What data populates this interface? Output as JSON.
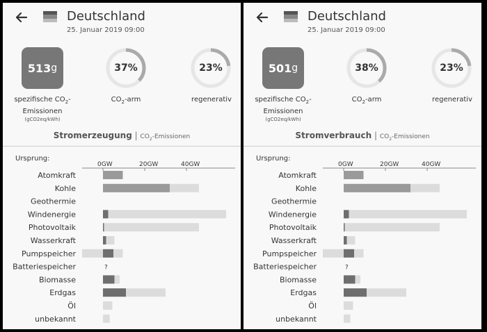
{
  "colors": {
    "background": "#f8f8f8",
    "co2_box": "#777777",
    "ring_track": "#e6e6e6",
    "ring_fill": "#aaaaaa",
    "bar_light": "#dcdcdc",
    "bar_mid": "#9a9a9a",
    "bar_dark": "#6e6e6e"
  },
  "icons": {
    "back": "arrow-left-icon",
    "flag": "germany-flag-icon"
  },
  "panels": [
    {
      "country": "Deutschland",
      "date": "25. Januar 2019 09:00",
      "co2_value": "513",
      "co2_unit": "g",
      "co2_label_pre": "spezifische CO",
      "co2_label_sub": "2",
      "co2_label_post": "-",
      "co2_label_line2": "Emissionen",
      "co2_label_unit": "(gCO2eq/kWh)",
      "low_carbon_pct": 37,
      "low_carbon_text": "37%",
      "low_carbon_label_pre": "CO",
      "low_carbon_label_sub": "2",
      "low_carbon_label_post": "-arm",
      "renewable_pct": 23,
      "renewable_text": "23%",
      "renewable_label": "regenerativ",
      "section_title": "Stromerzeugung",
      "section_sep": "|",
      "section_alt_pre": "CO",
      "section_alt_sub": "2",
      "section_alt_post": "-Emissionen",
      "origin_label": "Ursprung:",
      "chart_data": {
        "type": "bar",
        "unit": "GW",
        "xticks": [
          0,
          20,
          40
        ],
        "tick_labels": [
          "0GW",
          "20GW",
          "40GW"
        ],
        "categories": [
          "Atomkraft",
          "Kohle",
          "Geothermie",
          "Windenergie",
          "Photovoltaik",
          "Wasserkraft",
          "Pumpspeicher",
          "Batteriespeicher",
          "Biomasse",
          "Erdgas",
          "Öl",
          "unbekannt"
        ],
        "unknown_markers": [
          "",
          "",
          "",
          "",
          "",
          "",
          "",
          "?",
          "",
          "",
          "",
          ""
        ],
        "capacity": [
          [
            0,
            9.5
          ],
          [
            0,
            46
          ],
          [
            0,
            0
          ],
          [
            0,
            59
          ],
          [
            0,
            46
          ],
          [
            0,
            5.5
          ],
          [
            -10,
            9.5
          ],
          [
            0,
            0
          ],
          [
            0,
            8
          ],
          [
            0,
            30
          ],
          [
            0,
            4.5
          ],
          [
            0,
            3.2
          ]
        ],
        "production": [
          [
            0,
            9.5
          ],
          [
            0,
            32
          ],
          [
            0,
            0
          ],
          [
            0,
            2.5
          ],
          [
            0,
            0.5
          ],
          [
            0,
            1.5
          ],
          [
            0,
            5
          ],
          [
            0,
            0
          ],
          [
            0,
            5.5
          ],
          [
            0,
            11
          ],
          [
            0,
            0
          ],
          [
            0,
            0
          ]
        ]
      }
    },
    {
      "country": "Deutschland",
      "date": "25. Januar 2019 09:00",
      "co2_value": "501",
      "co2_unit": "g",
      "co2_label_pre": "spezifische CO",
      "co2_label_sub": "2",
      "co2_label_post": "-",
      "co2_label_line2": "Emissionen",
      "co2_label_unit": "(gCO2eq/kWh)",
      "low_carbon_pct": 38,
      "low_carbon_text": "38%",
      "low_carbon_label_pre": "CO",
      "low_carbon_label_sub": "2",
      "low_carbon_label_post": "-arm",
      "renewable_pct": 23,
      "renewable_text": "23%",
      "renewable_label": "regenerativ",
      "section_title": "Stromverbrauch",
      "section_sep": "|",
      "section_alt_pre": "CO",
      "section_alt_sub": "2",
      "section_alt_post": "-Emissionen",
      "origin_label": "Ursprung:",
      "chart_data": {
        "type": "bar",
        "unit": "GW",
        "xticks": [
          0,
          20,
          40
        ],
        "tick_labels": [
          "0GW",
          "20GW",
          "40GW"
        ],
        "categories": [
          "Atomkraft",
          "Kohle",
          "Geothermie",
          "Windenergie",
          "Photovoltaik",
          "Wasserkraft",
          "Pumpspeicher",
          "Batteriespeicher",
          "Biomasse",
          "Erdgas",
          "Öl",
          "unbekannt"
        ],
        "unknown_markers": [
          "",
          "",
          "",
          "",
          "",
          "",
          "",
          "?",
          "",
          "",
          "",
          ""
        ],
        "capacity": [
          [
            0,
            9.5
          ],
          [
            0,
            46
          ],
          [
            0,
            0
          ],
          [
            0,
            59
          ],
          [
            0,
            46
          ],
          [
            0,
            5.5
          ],
          [
            -10,
            9.5
          ],
          [
            0,
            0
          ],
          [
            0,
            8
          ],
          [
            0,
            30
          ],
          [
            0,
            4.5
          ],
          [
            0,
            3.2
          ]
        ],
        "production": [
          [
            0,
            9.5
          ],
          [
            0,
            32
          ],
          [
            0,
            0
          ],
          [
            0,
            2.5
          ],
          [
            0,
            0.5
          ],
          [
            0,
            1.5
          ],
          [
            0,
            5
          ],
          [
            0,
            0
          ],
          [
            0,
            5.5
          ],
          [
            0,
            11
          ],
          [
            0,
            0
          ],
          [
            0,
            0
          ]
        ]
      }
    }
  ]
}
